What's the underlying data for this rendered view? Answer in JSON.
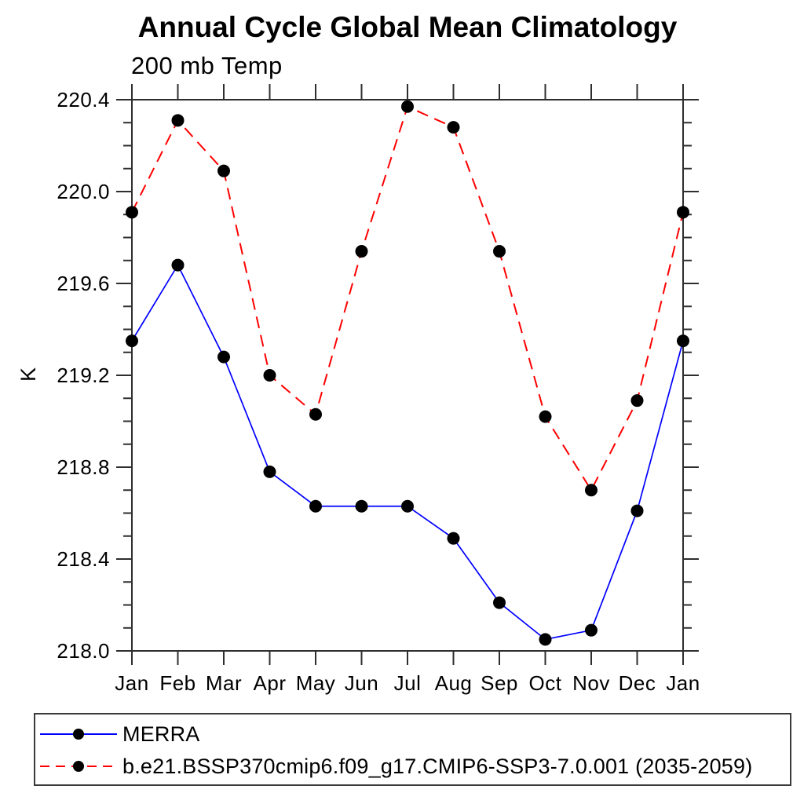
{
  "chart_data": {
    "type": "line",
    "title": "Annual Cycle Global Mean Climatology",
    "subtitle": "200 mb Temp",
    "ylabel": "K",
    "x_categories": [
      "Jan",
      "Feb",
      "Mar",
      "Apr",
      "May",
      "Jun",
      "Jul",
      "Aug",
      "Sep",
      "Oct",
      "Nov",
      "Dec",
      "Jan"
    ],
    "ylim": [
      218.0,
      220.4
    ],
    "ytick_major_step": 0.4,
    "ytick_minor_step": 0.1,
    "ytick_labels": [
      "218.0",
      "218.4",
      "218.8",
      "219.2",
      "219.6",
      "220.0",
      "220.4"
    ],
    "grid": false,
    "legend_position": "bottom-left-box",
    "marker": {
      "shape": "circle",
      "color": "#000000"
    },
    "axis_color": "#2e2e2e",
    "series": [
      {
        "name": "MERRA",
        "color": "#0000ff",
        "line_style": "solid",
        "values": [
          219.35,
          219.68,
          219.28,
          218.78,
          218.63,
          218.63,
          218.63,
          218.49,
          218.21,
          218.05,
          218.09,
          218.61,
          219.35
        ]
      },
      {
        "name": "b.e21.BSSP370cmip6.f09_g17.CMIP6-SSP3-7.0.001 (2035-2059)",
        "color": "#ff0000",
        "line_style": "dashed",
        "values": [
          219.91,
          220.31,
          220.09,
          219.2,
          219.03,
          219.74,
          220.37,
          220.28,
          219.74,
          219.02,
          218.7,
          219.09,
          219.91
        ]
      }
    ]
  }
}
